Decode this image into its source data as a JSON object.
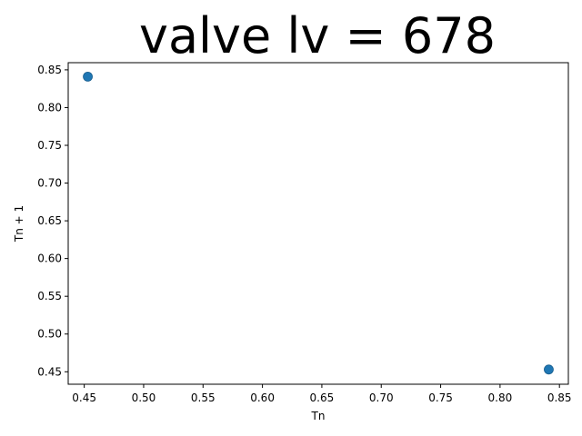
{
  "chart_data": {
    "type": "scatter",
    "title": "valve lv = 678",
    "xlabel": "Tn",
    "ylabel": "Tn + 1",
    "xlim": [
      0.4365,
      0.8575
    ],
    "ylim": [
      0.4335,
      0.8595
    ],
    "xticks": [
      0.45,
      0.5,
      0.55,
      0.6,
      0.65,
      0.7,
      0.75,
      0.8,
      0.85
    ],
    "xtick_labels": [
      "0.45",
      "0.50",
      "0.55",
      "0.60",
      "0.65",
      "0.70",
      "0.75",
      "0.80",
      "0.85"
    ],
    "yticks": [
      0.45,
      0.5,
      0.55,
      0.6,
      0.65,
      0.7,
      0.75,
      0.8,
      0.85
    ],
    "ytick_labels": [
      "0.45",
      "0.50",
      "0.55",
      "0.60",
      "0.65",
      "0.70",
      "0.75",
      "0.80",
      "0.85"
    ],
    "grid": false,
    "series": [
      {
        "color": "#1f77b4",
        "x": [
          0.453,
          0.841
        ],
        "y": [
          0.841,
          0.453
        ]
      }
    ]
  }
}
